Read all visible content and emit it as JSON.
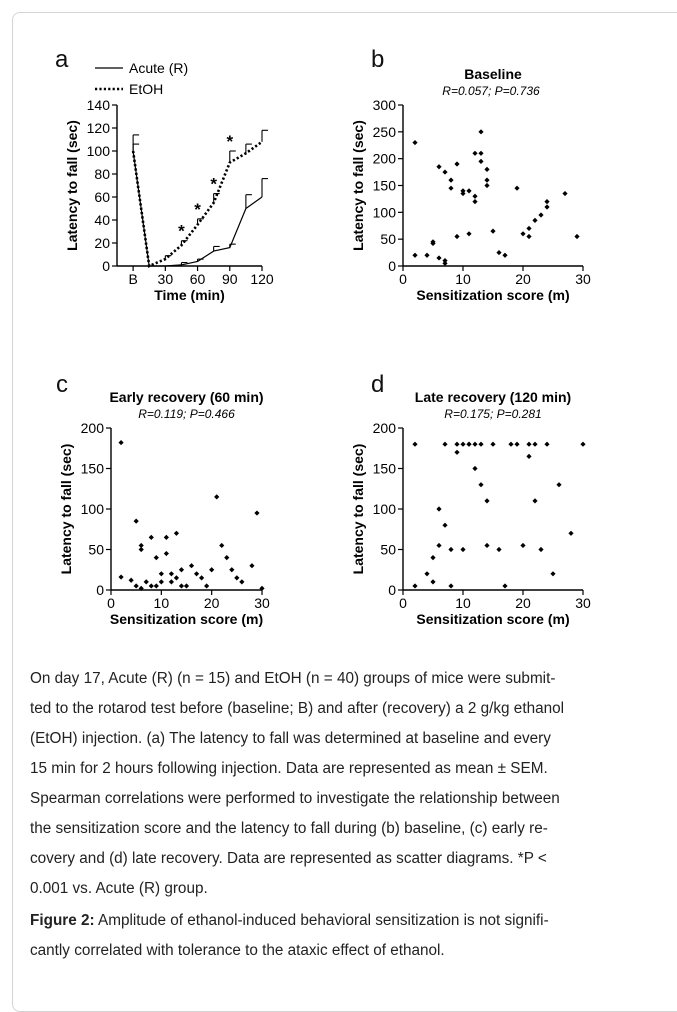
{
  "chart_data": [
    {
      "panel": "a",
      "type": "line",
      "title": "",
      "xlabel": "Time (min)",
      "ylabel": "Latency to fall (sec)",
      "xticks": [
        "B",
        "30",
        "60",
        "90",
        "120"
      ],
      "yticks": [
        "0",
        "20",
        "40",
        "60",
        "80",
        "100",
        "120",
        "140"
      ],
      "xlim": [
        -15,
        120
      ],
      "ylim": [
        0,
        140
      ],
      "series": [
        {
          "name": "Acute (R)",
          "style": "solid",
          "x": [
            0,
            15,
            30,
            45,
            60,
            75,
            90,
            105,
            120
          ],
          "y": [
            100,
            0,
            0,
            1,
            4,
            13,
            16,
            50,
            60
          ],
          "sem": [
            14,
            0,
            0,
            2,
            2,
            4,
            3,
            12,
            16
          ]
        },
        {
          "name": "EtOH",
          "style": "dotted",
          "x": [
            0,
            15,
            30,
            45,
            60,
            75,
            90,
            105,
            120
          ],
          "y": [
            100,
            0,
            6,
            18,
            36,
            55,
            90,
            98,
            108
          ],
          "sem": [
            6,
            0,
            3,
            4,
            5,
            8,
            10,
            8,
            10
          ]
        }
      ],
      "significance": [
        {
          "x": 45,
          "label": "*"
        },
        {
          "x": 60,
          "label": "*"
        },
        {
          "x": 75,
          "label": "*"
        },
        {
          "x": 90,
          "label": "*"
        }
      ],
      "legend_position": "top-left"
    },
    {
      "panel": "b",
      "type": "scatter",
      "title": "Baseline",
      "subtitle": "R=0.057; P=0.736",
      "xlabel": "Sensitization score (m)",
      "ylabel": "Latency to fall (sec)",
      "xticks": [
        "0",
        "10",
        "20",
        "30"
      ],
      "yticks": [
        "0",
        "50",
        "100",
        "150",
        "200",
        "250",
        "300"
      ],
      "xlim": [
        0,
        30
      ],
      "ylim": [
        0,
        300
      ],
      "points": [
        [
          2,
          230
        ],
        [
          2,
          20
        ],
        [
          4,
          20
        ],
        [
          5,
          45
        ],
        [
          5,
          42
        ],
        [
          6,
          15
        ],
        [
          6,
          185
        ],
        [
          7,
          10
        ],
        [
          7,
          5
        ],
        [
          7,
          175
        ],
        [
          8,
          145
        ],
        [
          8,
          160
        ],
        [
          9,
          190
        ],
        [
          9,
          55
        ],
        [
          10,
          135
        ],
        [
          10,
          140
        ],
        [
          11,
          140
        ],
        [
          11,
          60
        ],
        [
          12,
          210
        ],
        [
          12,
          130
        ],
        [
          12,
          120
        ],
        [
          13,
          250
        ],
        [
          13,
          210
        ],
        [
          13,
          195
        ],
        [
          14,
          150
        ],
        [
          14,
          160
        ],
        [
          14,
          180
        ],
        [
          15,
          65
        ],
        [
          16,
          25
        ],
        [
          17,
          20
        ],
        [
          19,
          145
        ],
        [
          20,
          60
        ],
        [
          21,
          55
        ],
        [
          21,
          70
        ],
        [
          22,
          85
        ],
        [
          23,
          95
        ],
        [
          24,
          110
        ],
        [
          24,
          120
        ],
        [
          27,
          135
        ],
        [
          29,
          55
        ]
      ]
    },
    {
      "panel": "c",
      "type": "scatter",
      "title": "Early recovery (60 min)",
      "subtitle": "R=0.119; P=0.466",
      "xlabel": "Sensitization score (m)",
      "ylabel": "Latency to fall (sec)",
      "xticks": [
        "0",
        "10",
        "20",
        "30"
      ],
      "yticks": [
        "0",
        "50",
        "100",
        "150",
        "200"
      ],
      "xlim": [
        0,
        30
      ],
      "ylim": [
        0,
        200
      ],
      "points": [
        [
          2,
          182
        ],
        [
          2,
          16
        ],
        [
          4,
          12
        ],
        [
          5,
          5
        ],
        [
          5,
          85
        ],
        [
          6,
          55
        ],
        [
          6,
          50
        ],
        [
          6,
          2
        ],
        [
          7,
          10
        ],
        [
          8,
          5
        ],
        [
          8,
          65
        ],
        [
          9,
          5
        ],
        [
          9,
          40
        ],
        [
          10,
          20
        ],
        [
          10,
          10
        ],
        [
          11,
          65
        ],
        [
          11,
          45
        ],
        [
          12,
          20
        ],
        [
          12,
          10
        ],
        [
          13,
          15
        ],
        [
          13,
          70
        ],
        [
          14,
          5
        ],
        [
          14,
          25
        ],
        [
          15,
          5
        ],
        [
          16,
          30
        ],
        [
          17,
          20
        ],
        [
          18,
          15
        ],
        [
          19,
          5
        ],
        [
          20,
          25
        ],
        [
          21,
          115
        ],
        [
          22,
          55
        ],
        [
          23,
          40
        ],
        [
          24,
          25
        ],
        [
          25,
          15
        ],
        [
          26,
          10
        ],
        [
          28,
          30
        ],
        [
          29,
          95
        ],
        [
          30,
          2
        ]
      ]
    },
    {
      "panel": "d",
      "type": "scatter",
      "title": "Late recovery (120 min)",
      "subtitle": "R=0.175; P=0.281",
      "xlabel": "Sensitization score (m)",
      "ylabel": "Latency to fall (sec)",
      "xticks": [
        "0",
        "10",
        "20",
        "30"
      ],
      "yticks": [
        "0",
        "50",
        "100",
        "150",
        "200"
      ],
      "xlim": [
        0,
        30
      ],
      "ylim": [
        0,
        200
      ],
      "points": [
        [
          2,
          180
        ],
        [
          2,
          5
        ],
        [
          4,
          20
        ],
        [
          5,
          10
        ],
        [
          5,
          40
        ],
        [
          6,
          100
        ],
        [
          6,
          55
        ],
        [
          7,
          80
        ],
        [
          7,
          180
        ],
        [
          8,
          5
        ],
        [
          8,
          50
        ],
        [
          9,
          180
        ],
        [
          9,
          170
        ],
        [
          10,
          180
        ],
        [
          10,
          50
        ],
        [
          11,
          180
        ],
        [
          11,
          180
        ],
        [
          12,
          150
        ],
        [
          12,
          180
        ],
        [
          13,
          130
        ],
        [
          13,
          180
        ],
        [
          14,
          110
        ],
        [
          14,
          55
        ],
        [
          15,
          180
        ],
        [
          16,
          50
        ],
        [
          17,
          5
        ],
        [
          18,
          180
        ],
        [
          19,
          180
        ],
        [
          20,
          55
        ],
        [
          21,
          180
        ],
        [
          21,
          165
        ],
        [
          22,
          110
        ],
        [
          22,
          180
        ],
        [
          23,
          50
        ],
        [
          24,
          180
        ],
        [
          25,
          20
        ],
        [
          26,
          130
        ],
        [
          28,
          70
        ],
        [
          30,
          180
        ]
      ]
    }
  ],
  "panels": [
    {
      "letter": "a"
    },
    {
      "letter": "b"
    },
    {
      "letter": "c"
    },
    {
      "letter": "d"
    }
  ],
  "caption": {
    "lines": [
      "On day 17, Acute (R) (n = 15) and EtOH (n = 40) groups of mice were submit-",
      "ted to the rotarod test before (baseline; B) and after (recovery) a 2 g/kg ethanol",
      "(EtOH) injection. (a) The latency to fall was determined at baseline and every",
      "15 min for 2 hours following injection. Data are represented as mean ± SEM.",
      "Spearman correlations were performed to investigate the relationship between",
      "the sensitization score and the latency to fall during (b) baseline, (c) early re-",
      "covery and (d) late recovery. Data are represented as scatter diagrams. *P <",
      "0.001 vs. Acute (R) group."
    ],
    "figure_label": "Figure 2:",
    "figure_text_lines": [
      "Amplitude of ethanol-induced behavioral sensitization is not signifi-",
      "cantly correlated with tolerance to the ataxic effect of ethanol."
    ]
  }
}
